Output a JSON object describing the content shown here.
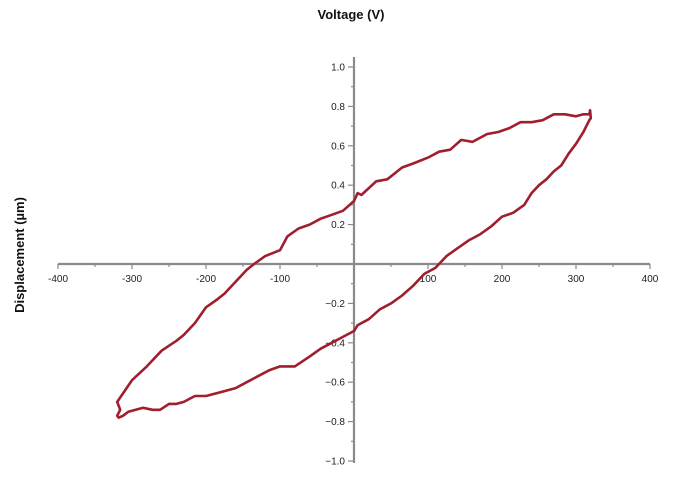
{
  "chart_data": {
    "type": "line",
    "title": "",
    "xlabel": "Voltage (V)",
    "ylabel": "Displacement (µm)",
    "xlim": [
      -400,
      400
    ],
    "ylim": [
      -1.0,
      1.0
    ],
    "x_ticks": [
      -400,
      -300,
      -200,
      -100,
      100,
      200,
      300,
      400
    ],
    "x_tick_labels": [
      "-400",
      "-300",
      "-200",
      "-100",
      "100",
      "200",
      "300",
      "400"
    ],
    "y_ticks": [
      1.0,
      0.8,
      0.6,
      0.4,
      0.2,
      -0.2,
      -0.4,
      -0.6,
      -0.8,
      -1.0
    ],
    "y_tick_labels": [
      "1.0",
      "0.8",
      "0.6",
      "0.4",
      "0.2",
      "−0.2",
      "−0.4",
      "−0.6",
      "−0.8",
      "−1.0"
    ],
    "grid": false,
    "color": "#a01e2e",
    "series": [
      {
        "x": [
          -320,
          -300,
          -280,
          -260,
          -240,
          -230,
          -215,
          -200,
          -185,
          -175,
          -160,
          -145,
          -135,
          -120,
          -100,
          -90,
          -75,
          -60,
          -45,
          -30,
          -15,
          0,
          5,
          10,
          30,
          45,
          65,
          80,
          100,
          115,
          130,
          145,
          160,
          180,
          195,
          210,
          225,
          240,
          255,
          270,
          285,
          300,
          310,
          318,
          319,
          320,
          318,
          310,
          300,
          290,
          280,
          270,
          260,
          250,
          240,
          230,
          215,
          200,
          185,
          170,
          155,
          140,
          125,
          110,
          95,
          80,
          65,
          50,
          35,
          20,
          5,
          0,
          -15,
          -30,
          -45,
          -60,
          -80,
          -100,
          -115,
          -130,
          -145,
          -160,
          -180,
          -200,
          -215,
          -230,
          -240,
          -250,
          -262,
          -272,
          -285,
          -295,
          -305,
          -312,
          -318,
          -320,
          -316,
          -320
        ],
        "y": [
          -0.7,
          -0.59,
          -0.52,
          -0.44,
          -0.39,
          -0.36,
          -0.3,
          -0.22,
          -0.18,
          -0.15,
          -0.09,
          -0.03,
          0.0,
          0.04,
          0.07,
          0.14,
          0.18,
          0.2,
          0.23,
          0.25,
          0.27,
          0.32,
          0.36,
          0.35,
          0.42,
          0.43,
          0.49,
          0.51,
          0.54,
          0.57,
          0.58,
          0.63,
          0.62,
          0.66,
          0.67,
          0.69,
          0.72,
          0.72,
          0.73,
          0.76,
          0.76,
          0.75,
          0.76,
          0.76,
          0.78,
          0.74,
          0.73,
          0.67,
          0.61,
          0.56,
          0.5,
          0.47,
          0.43,
          0.4,
          0.36,
          0.3,
          0.26,
          0.24,
          0.19,
          0.15,
          0.12,
          0.08,
          0.04,
          -0.02,
          -0.05,
          -0.11,
          -0.16,
          -0.2,
          -0.23,
          -0.28,
          -0.31,
          -0.34,
          -0.37,
          -0.4,
          -0.43,
          -0.47,
          -0.52,
          -0.52,
          -0.54,
          -0.57,
          -0.6,
          -0.63,
          -0.65,
          -0.67,
          -0.67,
          -0.7,
          -0.71,
          -0.71,
          -0.74,
          -0.74,
          -0.73,
          -0.74,
          -0.75,
          -0.77,
          -0.78,
          -0.77,
          -0.74,
          -0.7
        ]
      }
    ]
  }
}
